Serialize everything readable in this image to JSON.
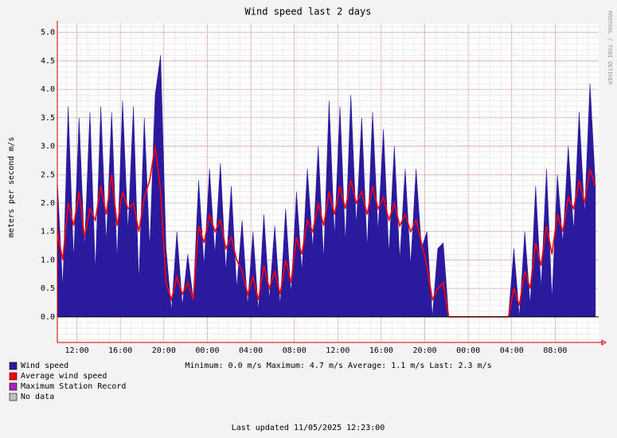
{
  "chart_data": {
    "type": "area",
    "title": "Wind speed last 2 days",
    "y_label": "meters per second    m/s",
    "side_text": "RRDTOOL / TOBI OETIKER",
    "x": [
      0,
      0.5,
      1,
      1.5,
      2,
      2.5,
      3,
      3.5,
      4,
      4.5,
      5,
      5.5,
      6,
      6.5,
      7,
      7.5,
      8,
      8.5,
      9,
      9.5,
      10,
      10.5,
      11,
      11.5,
      12,
      12.5,
      13,
      13.5,
      14,
      14.5,
      15,
      15.5,
      16,
      16.5,
      17,
      17.5,
      18,
      18.5,
      19,
      19.5,
      20,
      20.5,
      21,
      21.5,
      22,
      22.5,
      23,
      23.5,
      24,
      24.5,
      25,
      25.5,
      26,
      26.5,
      27,
      27.5,
      28,
      28.5,
      29,
      29.5,
      30,
      30.5,
      31,
      31.5,
      32,
      32.5,
      33,
      33.5,
      34,
      34.5,
      35,
      35.5,
      36,
      36.5,
      37,
      37.5,
      38,
      38.5,
      39,
      39.5,
      40,
      40.5,
      41,
      41.5,
      42,
      42.5,
      43,
      43.5,
      44,
      44.5,
      45,
      45.5,
      46,
      46.5,
      47,
      47.5,
      48,
      48.5,
      49,
      49.5
    ],
    "series": [
      {
        "name": "Wind speed",
        "color": "#2a1a9e",
        "values": [
          2.4,
          0.5,
          3.7,
          1.0,
          3.5,
          1.2,
          3.6,
          0.8,
          3.7,
          1.3,
          3.6,
          1.0,
          3.8,
          1.5,
          3.7,
          0.6,
          3.5,
          1.2,
          3.9,
          4.6,
          1.2,
          0.1,
          1.5,
          0.2,
          1.1,
          0.3,
          2.4,
          0.9,
          2.6,
          1.1,
          2.7,
          0.8,
          2.3,
          0.5,
          1.7,
          0.2,
          1.5,
          0.1,
          1.8,
          0.3,
          1.6,
          0.2,
          1.9,
          0.4,
          2.2,
          0.8,
          2.6,
          1.2,
          3.0,
          1.0,
          3.8,
          1.4,
          3.7,
          1.3,
          3.9,
          1.6,
          3.5,
          1.2,
          3.6,
          1.5,
          3.3,
          1.1,
          3.0,
          1.0,
          2.6,
          0.9,
          2.6,
          1.2,
          1.5,
          0.0,
          1.2,
          1.3,
          0,
          0,
          0,
          0,
          0,
          0,
          0,
          0,
          0,
          0,
          0,
          0,
          1.2,
          0.0,
          1.5,
          0.2,
          2.3,
          0.5,
          2.6,
          0.3,
          2.5,
          1.3,
          3.0,
          1.5,
          3.6,
          1.8,
          4.1,
          2.3
        ]
      },
      {
        "name": "Average wind speed",
        "color": "#ff0000",
        "values": [
          1.5,
          1.0,
          2.0,
          1.6,
          2.2,
          1.4,
          1.9,
          1.7,
          2.3,
          1.8,
          2.5,
          1.6,
          2.2,
          1.9,
          2.0,
          1.5,
          2.1,
          2.4,
          3.0,
          2.2,
          0.6,
          0.3,
          0.7,
          0.4,
          0.6,
          0.3,
          1.6,
          1.3,
          1.8,
          1.5,
          1.7,
          1.2,
          1.4,
          1.0,
          0.8,
          0.4,
          0.7,
          0.3,
          0.9,
          0.5,
          0.8,
          0.4,
          1.0,
          0.6,
          1.4,
          1.1,
          1.7,
          1.5,
          2.0,
          1.6,
          2.2,
          1.8,
          2.3,
          1.9,
          2.4,
          2.0,
          2.2,
          1.8,
          2.3,
          1.9,
          2.1,
          1.7,
          2.0,
          1.6,
          1.8,
          1.5,
          1.7,
          1.3,
          0.9,
          0.3,
          0.5,
          0.6,
          0,
          0,
          0,
          0,
          0,
          0,
          0,
          0,
          0,
          0,
          0,
          0,
          0.5,
          0.2,
          0.8,
          0.5,
          1.3,
          0.9,
          1.6,
          1.1,
          1.8,
          1.5,
          2.1,
          1.9,
          2.4,
          2.0,
          2.6,
          2.3
        ]
      }
    ],
    "legend": [
      {
        "name": "Wind speed",
        "color": "#2a1a9e"
      },
      {
        "name": "Average wind speed",
        "color": "#ff0000"
      },
      {
        "name": "Maximum Station Record",
        "color": "#b020c0"
      },
      {
        "name": "No data",
        "color": "#c0c0c0"
      }
    ],
    "xlim": [
      0,
      49.8
    ],
    "xticks": [
      {
        "value": 1.8,
        "label": "12:00"
      },
      {
        "value": 5.8,
        "label": "16:00"
      },
      {
        "value": 9.8,
        "label": "20:00"
      },
      {
        "value": 13.8,
        "label": "00:00"
      },
      {
        "value": 17.8,
        "label": "04:00"
      },
      {
        "value": 21.8,
        "label": "08:00"
      },
      {
        "value": 25.8,
        "label": "12:00"
      },
      {
        "value": 29.8,
        "label": "16:00"
      },
      {
        "value": 33.8,
        "label": "20:00"
      },
      {
        "value": 37.8,
        "label": "00:00"
      },
      {
        "value": 41.8,
        "label": "04:00"
      },
      {
        "value": 45.8,
        "label": "08:00"
      }
    ],
    "ylim": [
      -0.45,
      5.15
    ],
    "yticks": [
      {
        "value": 0,
        "label": "0.0"
      },
      0.5,
      {
        "value": 1,
        "label": "1.0"
      },
      1.5,
      {
        "value": 2,
        "label": "2.0"
      },
      2.5,
      {
        "value": 3,
        "label": "3.0"
      },
      3.5,
      {
        "value": 4,
        "label": "4.0"
      },
      4.5,
      {
        "value": 5,
        "label": "5.0"
      }
    ],
    "grid": true,
    "stats": "Minimum: 0.0 m/s  Maximum: 4.7 m/s  Average: 1.1 m/s  Last: 2.3 m/s",
    "footer": "Last updated 11/05/2025 12:23:00"
  }
}
